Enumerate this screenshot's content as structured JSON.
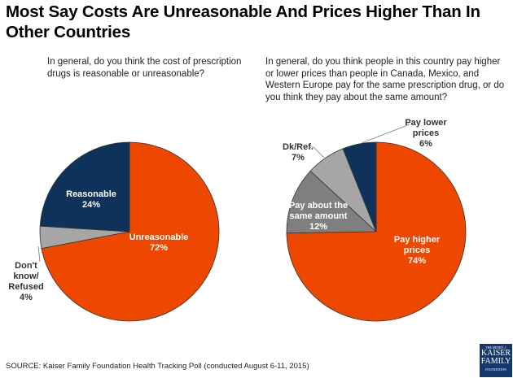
{
  "title": "Most Say Costs Are Unreasonable And Prices Higher Than In Other Countries",
  "source": "SOURCE: Kaiser Family Foundation Health Tracking Poll (conducted August 6-11, 2015)",
  "logo": {
    "line1": "THE HENRY J.",
    "line2": "KAISER",
    "line3": "FAMILY",
    "line4": "FOUNDATION"
  },
  "chart_data": [
    {
      "type": "pie",
      "title": "In general, do you think the cost of prescription drugs is reasonable or unreasonable?",
      "slices": [
        {
          "label": "Unreasonable",
          "value": 72,
          "display": "72%",
          "color": "#ee4700"
        },
        {
          "label": "Don't know/ Refused",
          "value": 4,
          "display": "4%",
          "color": "#a6a6a6"
        },
        {
          "label": "Reasonable",
          "value": 24,
          "display": "24%",
          "color": "#0e3259"
        }
      ]
    },
    {
      "type": "pie",
      "title": "In general, do you think people in this country pay higher or lower prices than people in Canada, Mexico, and Western Europe pay for the same prescription drug, or do you think they pay about the same amount?",
      "slices": [
        {
          "label": "Pay higher prices",
          "value": 74,
          "display": "74%",
          "color": "#ee4700"
        },
        {
          "label": "Pay about the same amount",
          "value": 12,
          "display": "12%",
          "color": "#7f7f7f"
        },
        {
          "label": "Dk/Ref.",
          "value": 7,
          "display": "7%",
          "color": "#a6a6a6"
        },
        {
          "label": "Pay lower prices",
          "value": 6,
          "display": "6%",
          "color": "#0e3259"
        }
      ]
    }
  ]
}
